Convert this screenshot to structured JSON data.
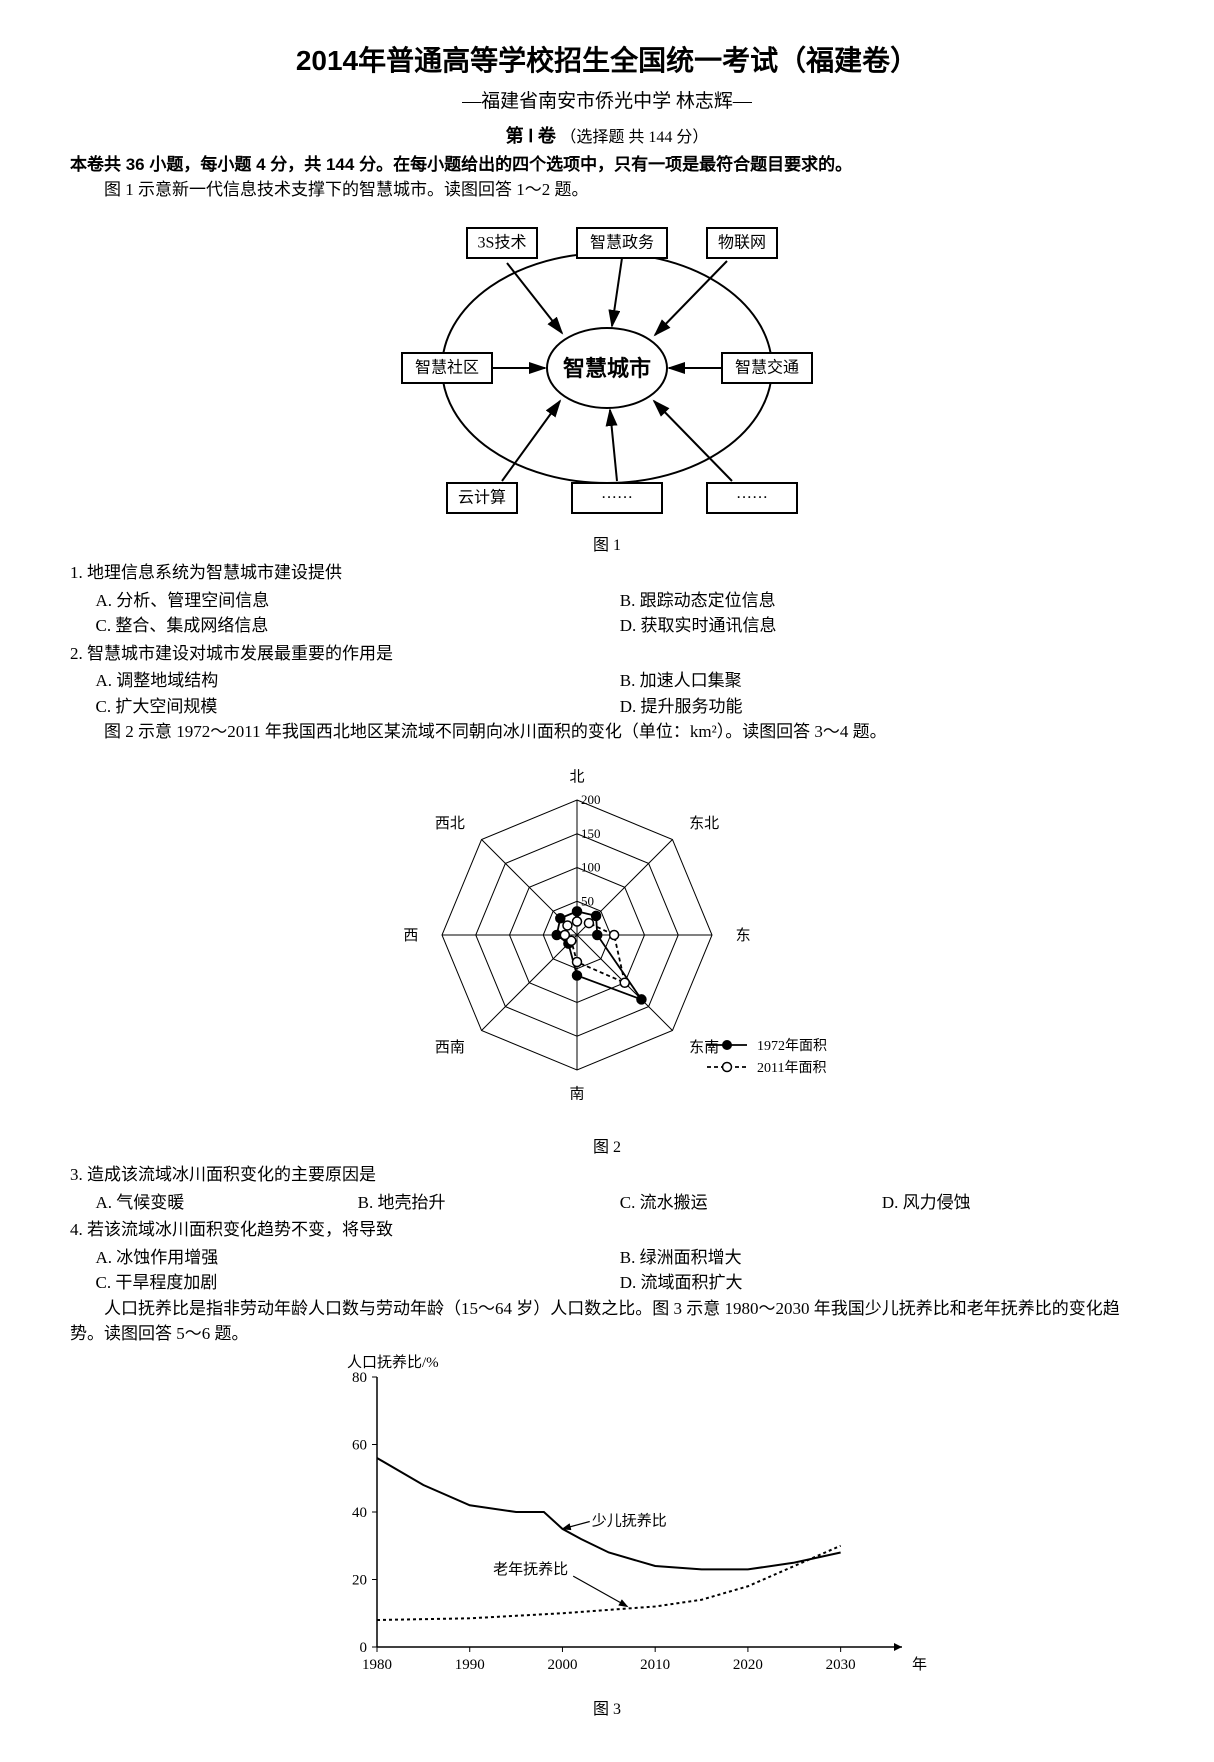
{
  "header": {
    "main_title": "2014年普通高等学校招生全国统一考试（福建卷）",
    "sub_title": "—福建省南安市侨光中学  林志辉—",
    "section": "第 Ⅰ 卷",
    "section_paren": "（选择题 共 144 分）",
    "instructions_bold": "本卷共 36 小题，每小题 4 分，共 144 分。在每小题给出的四个选项中，只有一项是最符合题目要求的。",
    "fig1_intro": "图 1 示意新一代信息技术支撑下的智慧城市。读图回答 1～2 题。"
  },
  "fig1": {
    "caption": "图 1",
    "center": "智慧城市",
    "nodes": {
      "n_3s": "3S技术",
      "n_zhengwu": "智慧政务",
      "n_wulian": "物联网",
      "n_shequ": "智慧社区",
      "n_jiaotong": "智慧交通",
      "n_yun": "云计算",
      "n_dots1": "······",
      "n_dots2": "······"
    },
    "colors": {
      "stroke": "#000000",
      "fill": "#ffffff"
    }
  },
  "q1": {
    "stem": "1. 地理信息系统为智慧城市建设提供",
    "A": "A. 分析、管理空间信息",
    "B": "B. 跟踪动态定位信息",
    "C": "C. 整合、集成网络信息",
    "D": "D. 获取实时通讯信息"
  },
  "q2": {
    "stem": "2. 智慧城市建设对城市发展最重要的作用是",
    "A": "A. 调整地域结构",
    "B": "B. 加速人口集聚",
    "C": "C. 扩大空间规模",
    "D": "D. 提升服务功能"
  },
  "fig2_intro": "图 2 示意 1972～2011 年我国西北地区某流域不同朝向冰川面积的变化（单位：km²）。读图回答 3～4 题。",
  "fig2": {
    "caption": "图 2",
    "axes": [
      "北",
      "东北",
      "东",
      "东南",
      "南",
      "西南",
      "西",
      "西北"
    ],
    "rings": [
      50,
      100,
      150,
      200
    ],
    "ring_labels": [
      "50",
      "100",
      "150",
      "200"
    ],
    "series1972": {
      "label": "1972年面积",
      "values": [
        35,
        40,
        30,
        135,
        60,
        18,
        30,
        35
      ],
      "color": "#000000",
      "marker": "filled"
    },
    "series2011": {
      "label": "2011年面积",
      "values": [
        20,
        25,
        55,
        100,
        40,
        12,
        18,
        20
      ],
      "color": "#000000",
      "marker": "open",
      "dash": "4 3"
    },
    "font_size": 15
  },
  "q3": {
    "stem": "3. 造成该流域冰川面积变化的主要原因是",
    "A": "A. 气候变暖",
    "B": "B. 地壳抬升",
    "C": "C. 流水搬运",
    "D": "D. 风力侵蚀"
  },
  "q4": {
    "stem": "4. 若该流域冰川面积变化趋势不变，将导致",
    "A": "A. 冰蚀作用增强",
    "B": "B. 绿洲面积增大",
    "C": "C. 干旱程度加剧",
    "D": "D. 流域面积扩大"
  },
  "fig3_intro": "人口抚养比是指非劳动年龄人口数与劳动年龄（15～64 岁）人口数之比。图 3 示意 1980～2030 年我国少儿抚养比和老年抚养比的变化趋势。读图回答 5～6 题。",
  "fig3": {
    "caption": "图 3",
    "ylabel": "人口抚养比/%",
    "xlabel_suffix": "年",
    "xticks": [
      1980,
      1990,
      2000,
      2010,
      2020,
      2030
    ],
    "yticks": [
      0,
      20,
      40,
      60,
      80
    ],
    "ylim": [
      0,
      80
    ],
    "xlim": [
      1980,
      2035
    ],
    "child": {
      "label": "少儿抚养比",
      "points": [
        [
          1980,
          56
        ],
        [
          1985,
          48
        ],
        [
          1990,
          42
        ],
        [
          1995,
          40
        ],
        [
          1998,
          40
        ],
        [
          2000,
          35
        ],
        [
          2002,
          32
        ],
        [
          2005,
          28
        ],
        [
          2010,
          24
        ],
        [
          2015,
          23
        ],
        [
          2020,
          23
        ],
        [
          2025,
          25
        ],
        [
          2030,
          28
        ]
      ],
      "color": "#000000",
      "dash": "none",
      "width": 2
    },
    "elder": {
      "label": "老年抚养比",
      "points": [
        [
          1980,
          8
        ],
        [
          1990,
          8.5
        ],
        [
          2000,
          10
        ],
        [
          2005,
          11
        ],
        [
          2010,
          12
        ],
        [
          2015,
          14
        ],
        [
          2020,
          18
        ],
        [
          2025,
          24
        ],
        [
          2030,
          30
        ]
      ],
      "color": "#000000",
      "dash": "3 3",
      "width": 2
    },
    "label_child_anchor": [
      2001,
      36
    ],
    "label_elder_anchor": [
      1999,
      21
    ],
    "background": "#ffffff",
    "axis_color": "#000000"
  }
}
